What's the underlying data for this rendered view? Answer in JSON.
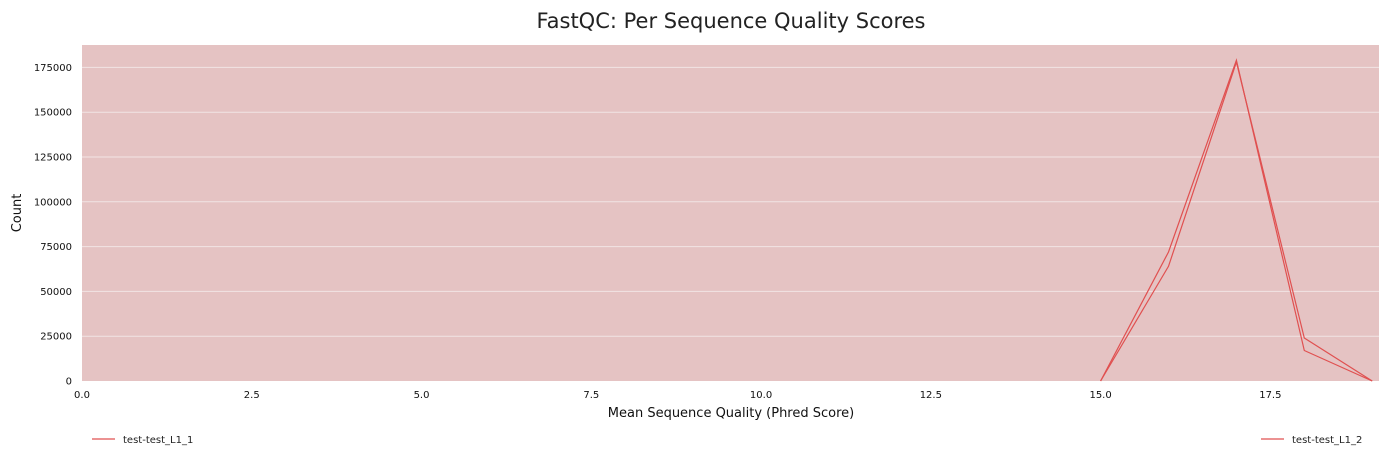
{
  "chart_data": {
    "type": "line",
    "title": "FastQC: Per Sequence Quality Scores",
    "xlabel": "Mean Sequence Quality (Phred Score)",
    "ylabel": "Count",
    "xlim": [
      0,
      19.1
    ],
    "ylim": [
      0,
      187500
    ],
    "xticks": [
      0.0,
      2.5,
      5.0,
      7.5,
      10.0,
      12.5,
      15.0,
      17.5
    ],
    "xtick_labels": [
      "0.0",
      "2.5",
      "5.0",
      "7.5",
      "10.0",
      "12.5",
      "15.0",
      "17.5"
    ],
    "yticks": [
      0,
      25000,
      50000,
      75000,
      100000,
      125000,
      150000,
      175000
    ],
    "ytick_labels": [
      "0",
      "25000",
      "50000",
      "75000",
      "100000",
      "125000",
      "150000",
      "175000"
    ],
    "grid": true,
    "background_color": "#e5c3c3",
    "legend_placement": "bottom",
    "series": [
      {
        "name": "test-test_L1_1",
        "color": "#e05050",
        "x": [
          15,
          16,
          17,
          18,
          19
        ],
        "y": [
          0,
          72000,
          179000,
          17000,
          0
        ]
      },
      {
        "name": "test-test_L1_2",
        "color": "#e05050",
        "x": [
          15,
          16,
          17,
          18,
          19
        ],
        "y": [
          0,
          64000,
          178000,
          24000,
          0
        ]
      }
    ]
  }
}
